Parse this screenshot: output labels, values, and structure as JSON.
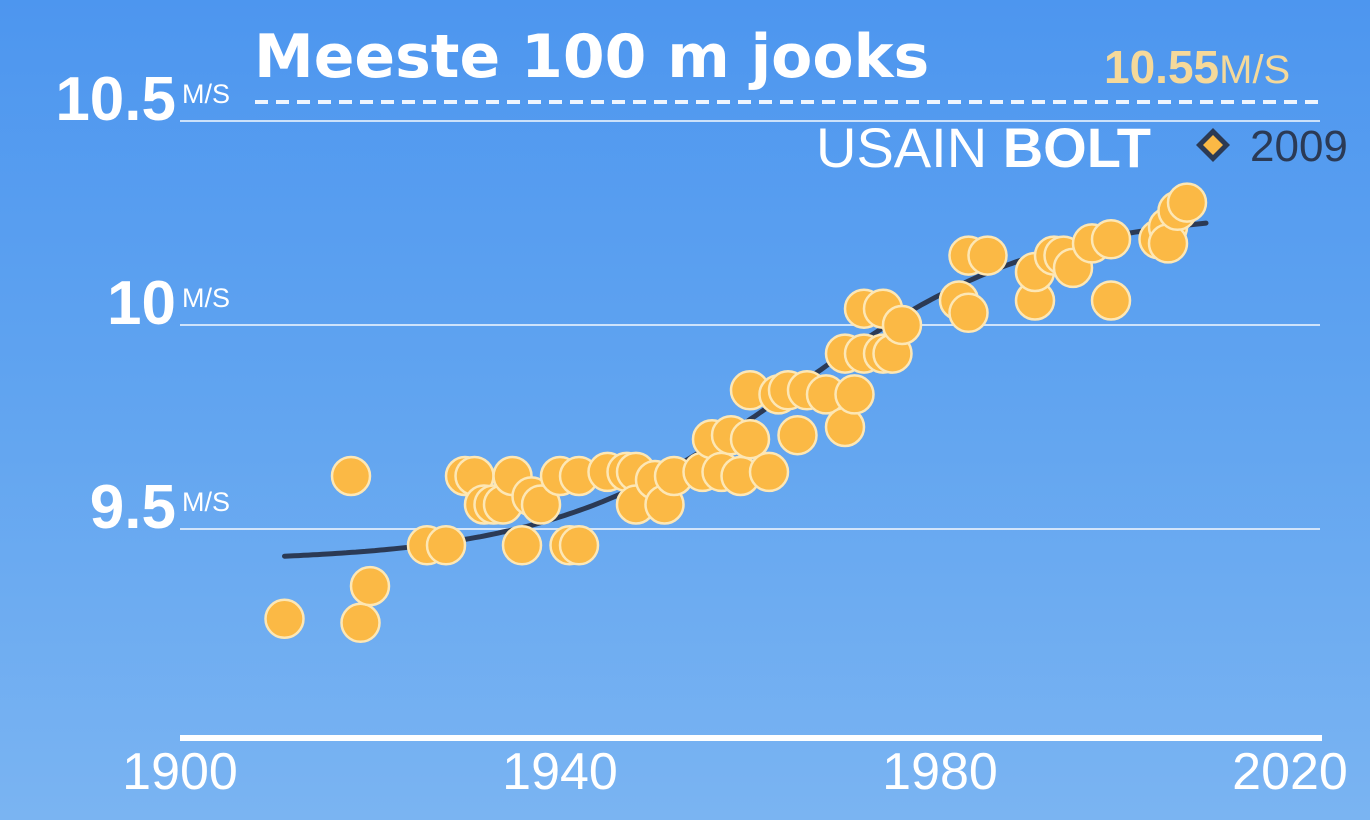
{
  "chart_data": {
    "type": "scatter",
    "title": "Meeste 100 m jooks",
    "xlabel": "",
    "ylabel": "",
    "xlim": [
      1900,
      2020
    ],
    "ylim": [
      9.0,
      10.55
    ],
    "x_ticks": [
      "1900",
      "1940",
      "1980",
      "2020"
    ],
    "y_ticks": [
      {
        "value": 9.5,
        "label": "9.5",
        "unit": "M/S"
      },
      {
        "value": 10,
        "label": "10",
        "unit": "M/S"
      },
      {
        "value": 10.5,
        "label": "10.5",
        "unit": "M/S"
      }
    ],
    "grid": true,
    "colors": {
      "points": "#fbb945",
      "point_edge": "#fde7b5",
      "trend": "#2b3a55",
      "grid": "#ffffff",
      "record_accent": "#f5d99a"
    },
    "points": [
      [
        1911,
        9.28
      ],
      [
        1919,
        9.27
      ],
      [
        1920,
        9.36
      ],
      [
        1918,
        9.63
      ],
      [
        1926,
        9.46
      ],
      [
        1928,
        9.46
      ],
      [
        1930,
        9.63
      ],
      [
        1931,
        9.63
      ],
      [
        1932,
        9.56
      ],
      [
        1933,
        9.56
      ],
      [
        1934,
        9.56
      ],
      [
        1935,
        9.63
      ],
      [
        1936,
        9.46
      ],
      [
        1937,
        9.58
      ],
      [
        1938,
        9.56
      ],
      [
        1940,
        9.63
      ],
      [
        1941,
        9.46
      ],
      [
        1942,
        9.63
      ],
      [
        1942,
        9.46
      ],
      [
        1945,
        9.64
      ],
      [
        1947,
        9.64
      ],
      [
        1948,
        9.64
      ],
      [
        1948,
        9.56
      ],
      [
        1950,
        9.62
      ],
      [
        1951,
        9.56
      ],
      [
        1952,
        9.63
      ],
      [
        1955,
        9.64
      ],
      [
        1956,
        9.72
      ],
      [
        1957,
        9.64
      ],
      [
        1958,
        9.73
      ],
      [
        1959,
        9.63
      ],
      [
        1960,
        9.84
      ],
      [
        1960,
        9.72
      ],
      [
        1962,
        9.64
      ],
      [
        1963,
        9.83
      ],
      [
        1964,
        9.84
      ],
      [
        1965,
        9.73
      ],
      [
        1966,
        9.84
      ],
      [
        1968,
        9.83
      ],
      [
        1970,
        9.75
      ],
      [
        1970,
        9.93
      ],
      [
        1971,
        9.83
      ],
      [
        1972,
        9.93
      ],
      [
        1972,
        10.04
      ],
      [
        1974,
        10.04
      ],
      [
        1974,
        9.93
      ],
      [
        1975,
        9.93
      ],
      [
        1976,
        10.0
      ],
      [
        1982,
        10.06
      ],
      [
        1983,
        10.03
      ],
      [
        1983,
        10.17
      ],
      [
        1985,
        10.17
      ],
      [
        1990,
        10.06
      ],
      [
        1990,
        10.13
      ],
      [
        1992,
        10.17
      ],
      [
        1993,
        10.17
      ],
      [
        1994,
        10.14
      ],
      [
        1996,
        10.2
      ],
      [
        1998,
        10.21
      ],
      [
        1998,
        10.06
      ],
      [
        2003,
        10.21
      ],
      [
        2004,
        10.24
      ],
      [
        2004,
        10.2
      ],
      [
        2005,
        10.28
      ],
      [
        2006,
        10.3
      ]
    ],
    "trend": {
      "type": "logistic",
      "x_range": [
        1911,
        2008
      ],
      "low": 9.42,
      "high": 10.28,
      "midpoint": 1965,
      "scale": 13
    },
    "record": {
      "value": "10.55",
      "unit": "M/S",
      "first_name": "USAIN",
      "last_name": "BOLT",
      "year": "2009"
    }
  }
}
